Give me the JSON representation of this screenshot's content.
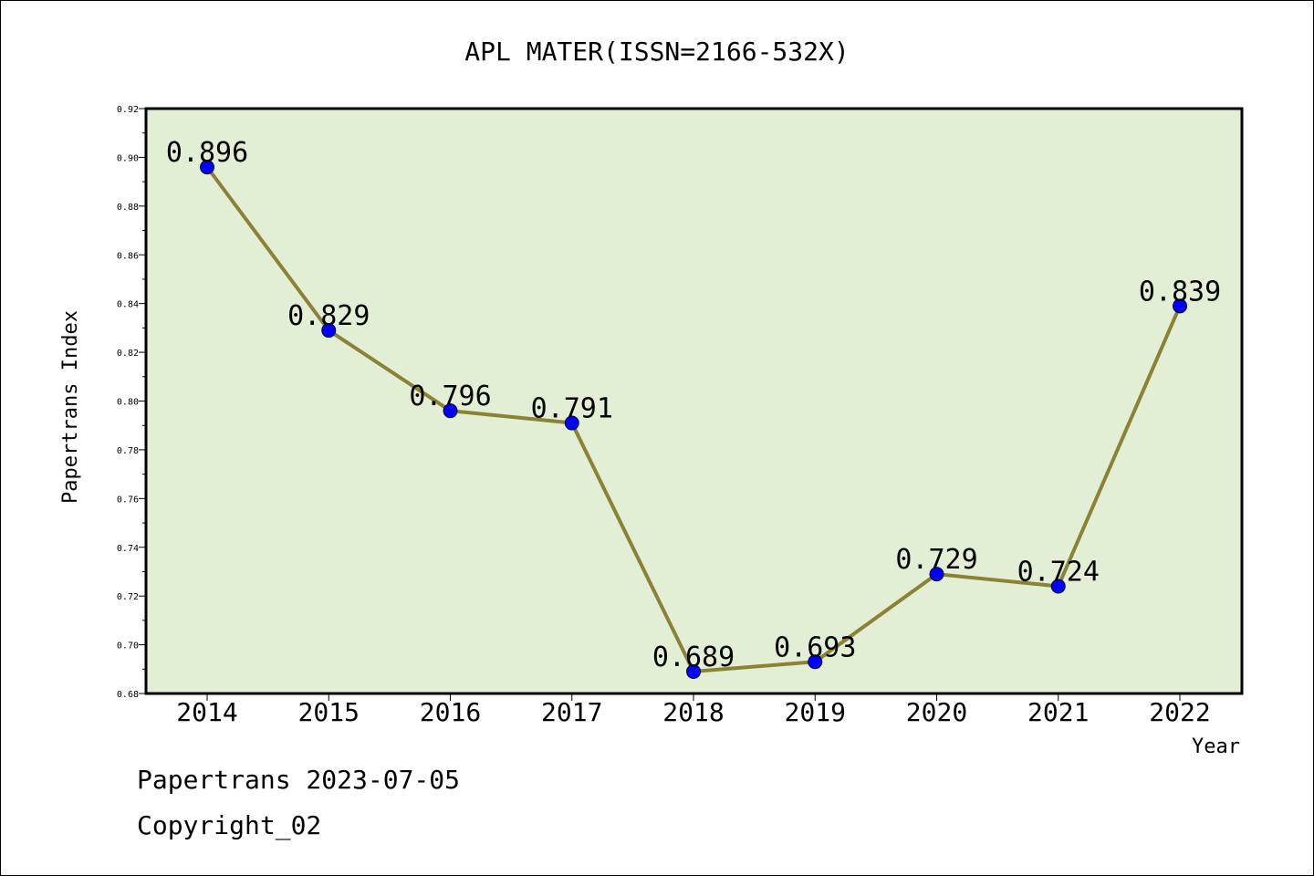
{
  "chart_data": {
    "type": "line",
    "title": "APL MATER(ISSN=2166-532X)",
    "xlabel": "Year",
    "ylabel": "Papertrans Index",
    "x": [
      "2014",
      "2015",
      "2016",
      "2017",
      "2018",
      "2019",
      "2020",
      "2021",
      "2022"
    ],
    "series": [
      {
        "values": [
          0.896,
          0.829,
          0.796,
          0.791,
          0.689,
          0.693,
          0.729,
          0.724,
          0.839
        ],
        "labels": [
          "0.896",
          "0.829",
          "0.796",
          "0.791",
          "0.689",
          "0.693",
          "0.729",
          "0.724",
          "0.839"
        ]
      }
    ],
    "ylim": [
      0.68,
      0.92
    ],
    "yticks": [
      "0.68",
      "0.70",
      "0.72",
      "0.74",
      "0.76",
      "0.78",
      "0.80",
      "0.82",
      "0.84",
      "0.86",
      "0.88",
      "0.90",
      "0.92"
    ],
    "grid": false,
    "colors": {
      "plot_background": "#e2efd5",
      "line": "#8b8236",
      "marker": "#0000ff"
    }
  },
  "footer": {
    "line1": "Papertrans 2023-07-05",
    "line2": "Copyright_02"
  }
}
